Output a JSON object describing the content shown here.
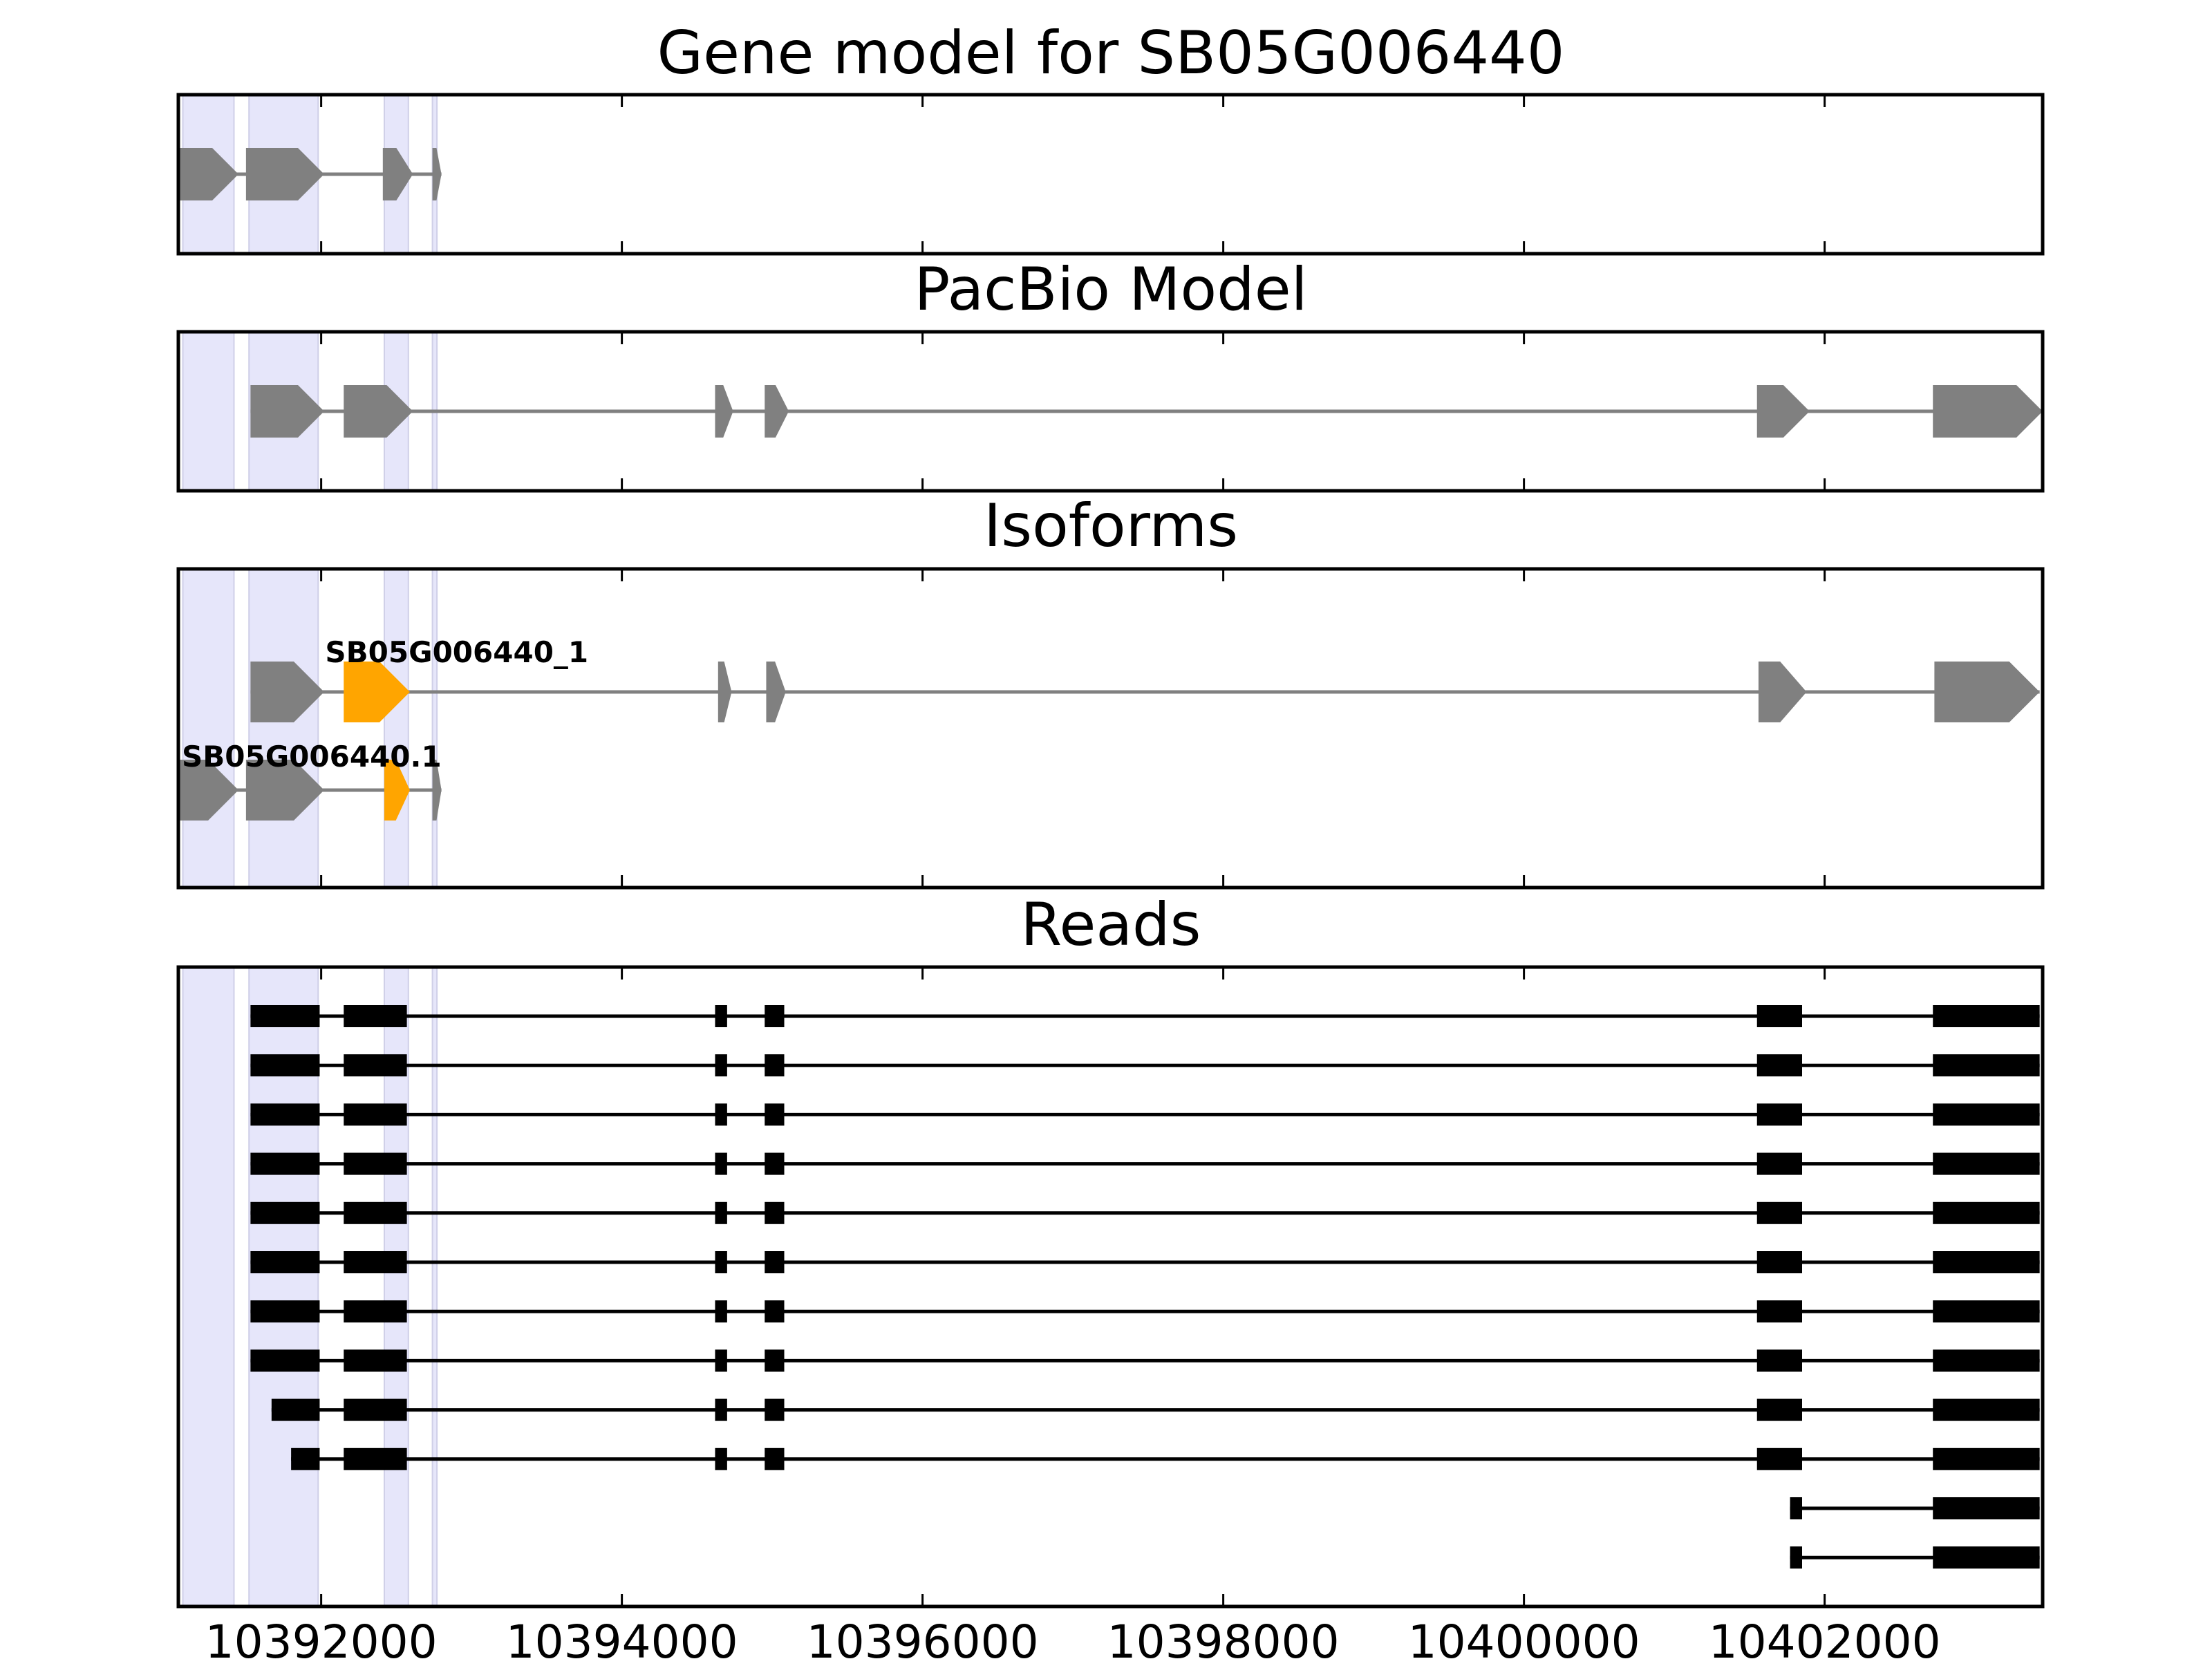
{
  "chart_data": {
    "type": "gene-model-tracks",
    "xlim": [
      10391050,
      10403450
    ],
    "x_ticks": [
      {
        "value": 10392000,
        "label": "10392000"
      },
      {
        "value": 10394000,
        "label": "10394000"
      },
      {
        "value": 10396000,
        "label": "10396000"
      },
      {
        "value": 10398000,
        "label": "10398000"
      },
      {
        "value": 10400000,
        "label": "10400000"
      },
      {
        "value": 10402000,
        "label": "10402000"
      }
    ],
    "highlight_regions": [
      [
        10391080,
        10391420
      ],
      [
        10391520,
        10391980
      ],
      [
        10392420,
        10392580
      ],
      [
        10392740,
        10392770
      ]
    ],
    "colors": {
      "gene": "#808080",
      "isoform_highlight": "#FFA500",
      "read": "#000000",
      "region": "#E6E6FA"
    },
    "panels": [
      {
        "id": "gene-model",
        "title": "Gene model for SB05G006440",
        "tracks": [
          {
            "exons": [
              [
                10391050,
                10391450
              ],
              [
                10391500,
                10392020
              ],
              [
                10392410,
                10392610
              ],
              [
                10392740,
                10392800
              ]
            ],
            "strand": "+"
          }
        ]
      },
      {
        "id": "pacbio-model",
        "title": "PacBio Model",
        "tracks": [
          {
            "exons": [
              [
                10391530,
                10392020
              ],
              [
                10392150,
                10392610
              ],
              [
                10394620,
                10394740
              ],
              [
                10394950,
                10395110
              ],
              [
                10401550,
                10401900
              ],
              [
                10402720,
                10403450
              ]
            ],
            "strand": "+"
          }
        ]
      },
      {
        "id": "isoforms",
        "title": "Isoforms",
        "tracks": [
          {
            "label": "SB05G006440_1",
            "exons": [
              [
                10391530,
                10392020
              ],
              [
                10392150,
                10392590
              ],
              [
                10394640,
                10394730
              ],
              [
                10394960,
                10395090
              ],
              [
                10401560,
                10401880
              ],
              [
                10402730,
                10403430
              ]
            ],
            "highlight_exons": [
              1
            ],
            "strand": "+"
          },
          {
            "label": "SB05G006440.1",
            "exons": [
              [
                10391050,
                10391450
              ],
              [
                10391500,
                10392020
              ],
              [
                10392420,
                10392590
              ],
              [
                10392740,
                10392800
              ]
            ],
            "highlight_exons": [
              2
            ],
            "strand": "+"
          }
        ]
      },
      {
        "id": "reads",
        "title": "Reads",
        "tracks": [
          {
            "exons": [
              [
                10391530,
                10391990
              ],
              [
                10392150,
                10392570
              ],
              [
                10394620,
                10394700
              ],
              [
                10394950,
                10395080
              ],
              [
                10401550,
                10401850
              ],
              [
                10402720,
                10403430
              ]
            ]
          },
          {
            "exons": [
              [
                10391530,
                10391990
              ],
              [
                10392150,
                10392570
              ],
              [
                10394620,
                10394700
              ],
              [
                10394950,
                10395080
              ],
              [
                10401550,
                10401850
              ],
              [
                10402720,
                10403430
              ]
            ]
          },
          {
            "exons": [
              [
                10391530,
                10391990
              ],
              [
                10392150,
                10392570
              ],
              [
                10394620,
                10394700
              ],
              [
                10394950,
                10395080
              ],
              [
                10401550,
                10401850
              ],
              [
                10402720,
                10403430
              ]
            ]
          },
          {
            "exons": [
              [
                10391530,
                10391990
              ],
              [
                10392150,
                10392570
              ],
              [
                10394620,
                10394700
              ],
              [
                10394950,
                10395080
              ],
              [
                10401550,
                10401850
              ],
              [
                10402720,
                10403430
              ]
            ]
          },
          {
            "exons": [
              [
                10391530,
                10391990
              ],
              [
                10392150,
                10392570
              ],
              [
                10394620,
                10394700
              ],
              [
                10394950,
                10395080
              ],
              [
                10401550,
                10401850
              ],
              [
                10402720,
                10403430
              ]
            ]
          },
          {
            "exons": [
              [
                10391530,
                10391990
              ],
              [
                10392150,
                10392570
              ],
              [
                10394620,
                10394700
              ],
              [
                10394950,
                10395080
              ],
              [
                10401550,
                10401850
              ],
              [
                10402720,
                10403430
              ]
            ]
          },
          {
            "exons": [
              [
                10391530,
                10391990
              ],
              [
                10392150,
                10392570
              ],
              [
                10394620,
                10394700
              ],
              [
                10394950,
                10395080
              ],
              [
                10401550,
                10401850
              ],
              [
                10402720,
                10403430
              ]
            ]
          },
          {
            "exons": [
              [
                10391530,
                10391990
              ],
              [
                10392150,
                10392570
              ],
              [
                10394620,
                10394700
              ],
              [
                10394950,
                10395080
              ],
              [
                10401550,
                10401850
              ],
              [
                10402720,
                10403430
              ]
            ]
          },
          {
            "exons": [
              [
                10391670,
                10391990
              ],
              [
                10392150,
                10392570
              ],
              [
                10394620,
                10394700
              ],
              [
                10394950,
                10395080
              ],
              [
                10401550,
                10401850
              ],
              [
                10402720,
                10403430
              ]
            ]
          },
          {
            "exons": [
              [
                10391800,
                10391990
              ],
              [
                10392150,
                10392570
              ],
              [
                10394620,
                10394700
              ],
              [
                10394950,
                10395080
              ],
              [
                10401550,
                10401850
              ],
              [
                10402720,
                10403430
              ]
            ]
          },
          {
            "exons": [
              [
                10401770,
                10401850
              ],
              [
                10402720,
                10403430
              ]
            ]
          },
          {
            "exons": [
              [
                10401770,
                10401850
              ],
              [
                10402720,
                10403430
              ]
            ]
          }
        ]
      }
    ]
  }
}
